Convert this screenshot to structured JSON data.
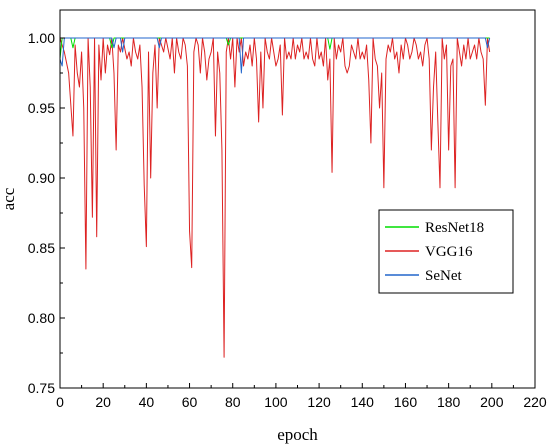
{
  "chart_data": {
    "type": "line",
    "title": "",
    "xlabel": "epoch",
    "ylabel": "acc",
    "xlim": [
      0,
      220
    ],
    "ylim": [
      0.75,
      1.02
    ],
    "xticks": [
      0,
      20,
      40,
      60,
      80,
      100,
      120,
      140,
      160,
      180,
      200,
      220
    ],
    "yticks": [
      0.75,
      0.8,
      0.85,
      0.9,
      0.95,
      1.0
    ],
    "xtick_labels": [
      "0",
      "20",
      "40",
      "60",
      "80",
      "100",
      "120",
      "140",
      "160",
      "180",
      "200",
      "220"
    ],
    "ytick_labels": [
      "0.75",
      "0.80",
      "0.85",
      "0.90",
      "0.95",
      "1.00"
    ],
    "grid": false,
    "legend_position": "right",
    "series": [
      {
        "name": "ResNet18",
        "color": "#00dd00",
        "points": [
          [
            0,
            0.985
          ],
          [
            1,
            1.0
          ],
          [
            5,
            1.0
          ],
          [
            6,
            0.993
          ],
          [
            7,
            1.0
          ],
          [
            23,
            1.0
          ],
          [
            24,
            0.993
          ],
          [
            25,
            1.0
          ],
          [
            77,
            1.0
          ],
          [
            78,
            0.995
          ],
          [
            79,
            1.0
          ],
          [
            124,
            1.0
          ],
          [
            125,
            0.992
          ],
          [
            126,
            1.0
          ],
          [
            199,
            1.0
          ]
        ]
      },
      {
        "name": "VGG16",
        "color": "#dd2222",
        "points": [
          [
            0,
            1.0
          ],
          [
            2,
            0.99
          ],
          [
            4,
            0.975
          ],
          [
            6,
            0.93
          ],
          [
            7,
            0.995
          ],
          [
            8,
            0.975
          ],
          [
            9,
            0.965
          ],
          [
            10,
            0.99
          ],
          [
            11,
            0.95
          ],
          [
            12,
            0.835
          ],
          [
            13,
            1.0
          ],
          [
            14,
            0.965
          ],
          [
            15,
            0.872
          ],
          [
            16,
            1.0
          ],
          [
            17,
            0.858
          ],
          [
            18,
            0.995
          ],
          [
            19,
            0.97
          ],
          [
            20,
            1.0
          ],
          [
            21,
            0.975
          ],
          [
            22,
            0.995
          ],
          [
            23,
            0.988
          ],
          [
            24,
            1.0
          ],
          [
            25,
            0.975
          ],
          [
            26,
            0.92
          ],
          [
            27,
            0.995
          ],
          [
            28,
            0.99
          ],
          [
            29,
            1.0
          ],
          [
            31,
            0.985
          ],
          [
            32,
            0.99
          ],
          [
            33,
            0.98
          ],
          [
            34,
            1.0
          ],
          [
            35,
            0.99
          ],
          [
            36,
            0.985
          ],
          [
            37,
            0.995
          ],
          [
            38,
            0.965
          ],
          [
            39,
            0.895
          ],
          [
            40,
            0.851
          ],
          [
            41,
            0.99
          ],
          [
            42,
            0.9
          ],
          [
            43,
            0.975
          ],
          [
            44,
            0.995
          ],
          [
            45,
            0.95
          ],
          [
            46,
            1.0
          ],
          [
            48,
            0.99
          ],
          [
            49,
            1.0
          ],
          [
            51,
            0.985
          ],
          [
            52,
            1.0
          ],
          [
            53,
            0.975
          ],
          [
            54,
            1.0
          ],
          [
            55,
            0.99
          ],
          [
            56,
            0.985
          ],
          [
            57,
            1.0
          ],
          [
            58,
            0.995
          ],
          [
            59,
            0.98
          ],
          [
            60,
            0.862
          ],
          [
            61,
            0.836
          ],
          [
            62,
            0.99
          ],
          [
            63,
            1.0
          ],
          [
            64,
            0.995
          ],
          [
            65,
            0.975
          ],
          [
            66,
            1.0
          ],
          [
            67,
            0.99
          ],
          [
            68,
            0.97
          ],
          [
            69,
            0.985
          ],
          [
            70,
            0.99
          ],
          [
            71,
            1.0
          ],
          [
            72,
            0.93
          ],
          [
            73,
            0.99
          ],
          [
            74,
            0.975
          ],
          [
            75,
            0.92
          ],
          [
            76,
            0.772
          ],
          [
            77,
            0.99
          ],
          [
            78,
            1.0
          ],
          [
            79,
            0.985
          ],
          [
            80,
            1.0
          ],
          [
            81,
            0.965
          ],
          [
            82,
            1.0
          ],
          [
            83,
            0.99
          ],
          [
            84,
            1.0
          ],
          [
            85,
            0.98
          ],
          [
            86,
            0.99
          ],
          [
            87,
            0.985
          ],
          [
            88,
            0.995
          ],
          [
            89,
            0.98
          ],
          [
            90,
            1.0
          ],
          [
            91,
            0.985
          ],
          [
            92,
            0.94
          ],
          [
            93,
            0.99
          ],
          [
            94,
            0.95
          ],
          [
            95,
            1.0
          ],
          [
            96,
            0.99
          ],
          [
            97,
            0.985
          ],
          [
            98,
            1.0
          ],
          [
            99,
            0.99
          ],
          [
            100,
            0.98
          ],
          [
            101,
            0.985
          ],
          [
            102,
            0.995
          ],
          [
            103,
            0.945
          ],
          [
            104,
            1.0
          ],
          [
            105,
            0.985
          ],
          [
            106,
            0.99
          ],
          [
            107,
            0.985
          ],
          [
            108,
            1.0
          ],
          [
            109,
            0.985
          ],
          [
            110,
            0.995
          ],
          [
            111,
            0.99
          ],
          [
            112,
            1.0
          ],
          [
            113,
            0.985
          ],
          [
            114,
            0.99
          ],
          [
            115,
            0.985
          ],
          [
            116,
            1.0
          ],
          [
            117,
            0.985
          ],
          [
            118,
            0.98
          ],
          [
            119,
            1.0
          ],
          [
            120,
            0.985
          ],
          [
            121,
            0.99
          ],
          [
            122,
            0.98
          ],
          [
            123,
            1.0
          ],
          [
            124,
            0.97
          ],
          [
            125,
            0.985
          ],
          [
            126,
            0.904
          ],
          [
            127,
            1.0
          ],
          [
            128,
            0.985
          ],
          [
            129,
            0.995
          ],
          [
            130,
            0.99
          ],
          [
            131,
            1.0
          ],
          [
            132,
            0.98
          ],
          [
            133,
            0.975
          ],
          [
            134,
            0.98
          ],
          [
            135,
            0.995
          ],
          [
            136,
            0.99
          ],
          [
            137,
            0.985
          ],
          [
            138,
            1.0
          ],
          [
            139,
            0.985
          ],
          [
            140,
            0.99
          ],
          [
            141,
            0.985
          ],
          [
            142,
            0.995
          ],
          [
            143,
            0.97
          ],
          [
            144,
            0.925
          ],
          [
            145,
            1.0
          ],
          [
            146,
            0.985
          ],
          [
            147,
            0.98
          ],
          [
            148,
            0.95
          ],
          [
            149,
            0.975
          ],
          [
            150,
            0.893
          ],
          [
            151,
            0.985
          ],
          [
            152,
            0.995
          ],
          [
            153,
            0.99
          ],
          [
            154,
            1.0
          ],
          [
            155,
            0.985
          ],
          [
            156,
            0.99
          ],
          [
            157,
            0.975
          ],
          [
            158,
            0.995
          ],
          [
            159,
            0.985
          ],
          [
            160,
            1.0
          ],
          [
            161,
            0.995
          ],
          [
            162,
            0.985
          ],
          [
            163,
            0.99
          ],
          [
            164,
            1.0
          ],
          [
            165,
            0.995
          ],
          [
            166,
            0.985
          ],
          [
            167,
            0.99
          ],
          [
            168,
            0.98
          ],
          [
            169,
            0.995
          ],
          [
            170,
            1.0
          ],
          [
            171,
            0.985
          ],
          [
            172,
            0.92
          ],
          [
            173,
            0.965
          ],
          [
            174,
            0.99
          ],
          [
            175,
            0.94
          ],
          [
            176,
            0.893
          ],
          [
            177,
            1.0
          ],
          [
            178,
            0.985
          ],
          [
            179,
            0.995
          ],
          [
            180,
            0.92
          ],
          [
            181,
            0.98
          ],
          [
            182,
            0.985
          ],
          [
            183,
            0.893
          ],
          [
            184,
            1.0
          ],
          [
            185,
            0.99
          ],
          [
            186,
            0.98
          ],
          [
            187,
            0.995
          ],
          [
            188,
            0.985
          ],
          [
            189,
            1.0
          ],
          [
            190,
            0.985
          ],
          [
            191,
            0.99
          ],
          [
            192,
            0.995
          ],
          [
            193,
            0.985
          ],
          [
            194,
            1.0
          ],
          [
            195,
            0.99
          ],
          [
            196,
            0.985
          ],
          [
            197,
            0.952
          ],
          [
            198,
            1.0
          ],
          [
            199,
            0.99
          ]
        ]
      },
      {
        "name": "SeNet",
        "color": "#2266cc",
        "points": [
          [
            0,
            0.985
          ],
          [
            1,
            0.98
          ],
          [
            2,
            1.0
          ],
          [
            24,
            1.0
          ],
          [
            25,
            0.993
          ],
          [
            26,
            1.0
          ],
          [
            28,
            1.0
          ],
          [
            29,
            0.99
          ],
          [
            30,
            1.0
          ],
          [
            45,
            1.0
          ],
          [
            46,
            0.993
          ],
          [
            47,
            1.0
          ],
          [
            83,
            1.0
          ],
          [
            84,
            0.975
          ],
          [
            85,
            1.0
          ],
          [
            197,
            1.0
          ],
          [
            198,
            0.993
          ],
          [
            199,
            1.0
          ]
        ]
      }
    ]
  }
}
